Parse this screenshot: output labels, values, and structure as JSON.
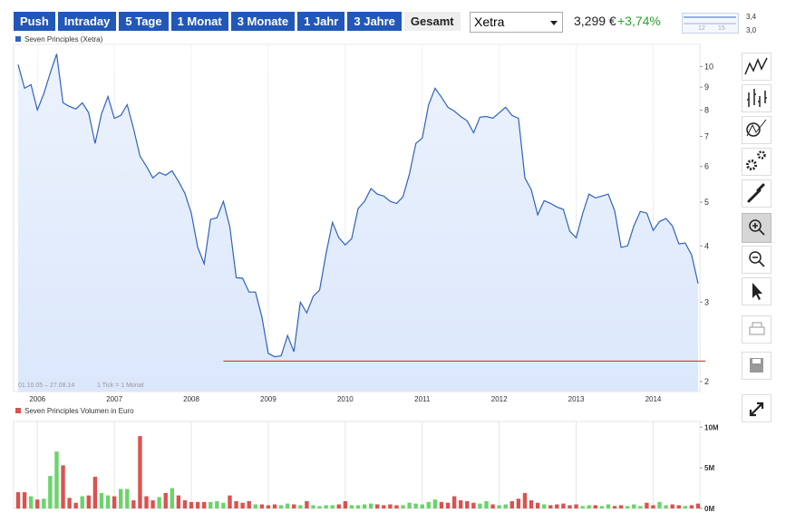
{
  "toolbar": {
    "tabs": [
      {
        "label": "Push",
        "selected": false
      },
      {
        "label": "Intraday",
        "selected": false
      },
      {
        "label": "5 Tage",
        "selected": false
      },
      {
        "label": "1 Monat",
        "selected": false
      },
      {
        "label": "3 Monate",
        "selected": false
      },
      {
        "label": "1 Jahr",
        "selected": false
      },
      {
        "label": "3 Jahre",
        "selected": false
      },
      {
        "label": "Gesamt",
        "selected": true
      }
    ]
  },
  "exchange": "Xetra",
  "price": "3,299 €",
  "change": "+3,74%",
  "mini_chart": {
    "y_labels": [
      "3,4",
      "3,0"
    ],
    "x_labels": [
      "12",
      "15"
    ]
  },
  "chart_data": [
    {
      "type": "line",
      "fill": true,
      "log_scale": true,
      "grid": "x",
      "date_range": "01.10.05 – 27.08.14",
      "tick_note": "1 Tick = 1 Monat",
      "categories": [
        null,
        null,
        null,
        "2006",
        null,
        null,
        null,
        null,
        null,
        null,
        null,
        null,
        null,
        null,
        null,
        "2007",
        null,
        null,
        null,
        null,
        null,
        null,
        null,
        null,
        null,
        null,
        null,
        "2008",
        null,
        null,
        null,
        null,
        null,
        null,
        null,
        null,
        null,
        null,
        null,
        "2009",
        null,
        null,
        null,
        null,
        null,
        null,
        null,
        null,
        null,
        null,
        null,
        "2010",
        null,
        null,
        null,
        null,
        null,
        null,
        null,
        null,
        null,
        null,
        null,
        "2011",
        null,
        null,
        null,
        null,
        null,
        null,
        null,
        null,
        null,
        null,
        null,
        "2012",
        null,
        null,
        null,
        null,
        null,
        null,
        null,
        null,
        null,
        null,
        null,
        "2013",
        null,
        null,
        null,
        null,
        null,
        null,
        null,
        null,
        null,
        null,
        null,
        "2014",
        null,
        null,
        null,
        null,
        null,
        null,
        null
      ],
      "series": [
        {
          "name": "Seven Principles (Xetra)",
          "color": "#2f62c0",
          "fill_color": "#dbe7fb",
          "values": [
            10.1,
            8.95,
            9.12,
            8.01,
            8.7,
            9.68,
            10.67,
            8.31,
            8.16,
            8.05,
            8.31,
            7.9,
            6.75,
            7.86,
            8.58,
            7.68,
            7.79,
            8.23,
            7.27,
            6.33,
            6.01,
            5.66,
            5.82,
            5.74,
            5.87,
            5.56,
            5.23,
            4.73,
            3.97,
            3.65,
            4.58,
            4.62,
            5.02,
            4.41,
            3.4,
            3.39,
            3.16,
            3.16,
            2.78,
            2.31,
            2.27,
            2.28,
            2.53,
            2.33,
            3.0,
            2.84,
            3.09,
            3.19,
            3.84,
            4.51,
            4.17,
            4.02,
            4.15,
            4.84,
            5.02,
            5.36,
            5.21,
            5.16,
            5.02,
            4.97,
            5.14,
            5.77,
            6.75,
            6.94,
            8.23,
            8.95,
            8.55,
            8.12,
            7.97,
            7.75,
            7.58,
            7.13,
            7.72,
            7.75,
            7.68,
            7.9,
            8.12,
            7.79,
            7.68,
            5.66,
            5.33,
            4.69,
            5.04,
            4.97,
            4.88,
            4.82,
            4.31,
            4.17,
            4.71,
            5.21,
            5.11,
            5.16,
            5.21,
            4.79,
            3.97,
            4.0,
            4.43,
            4.77,
            4.73,
            4.33,
            4.53,
            4.6,
            4.43,
            4.04,
            4.06,
            3.82,
            3.3
          ]
        }
      ],
      "ylim": [
        1.9,
        11.2
      ],
      "yticks": [
        2,
        3,
        4,
        5,
        6,
        7,
        8,
        9,
        10
      ],
      "reference_line": {
        "value": 2.22,
        "from": 32,
        "color": "#d42020"
      }
    },
    {
      "type": "bar",
      "grid": "x",
      "series": [
        {
          "name": "Seven Principles Volumen in Euro",
          "color": "#d9534f",
          "up_color": "#6ad46a",
          "values": [
            2.0,
            2.0,
            1.5,
            1.1,
            1.2,
            4.0,
            7.0,
            5.3,
            1.3,
            0.7,
            1.5,
            1.6,
            3.9,
            1.9,
            1.6,
            1.5,
            2.4,
            2.4,
            1.0,
            8.9,
            1.5,
            1.0,
            1.4,
            1.9,
            2.5,
            1.6,
            1.0,
            0.8,
            0.8,
            0.8,
            0.8,
            0.9,
            0.7,
            1.6,
            0.9,
            0.7,
            0.9,
            0.5,
            0.5,
            0.4,
            0.5,
            0.4,
            0.6,
            0.5,
            0.4,
            0.9,
            0.4,
            0.3,
            0.4,
            0.4,
            0.5,
            0.9,
            0.4,
            0.4,
            0.5,
            0.6,
            0.5,
            0.4,
            0.5,
            0.4,
            0.4,
            0.7,
            0.6,
            0.5,
            0.8,
            1.1,
            0.8,
            0.7,
            1.5,
            1.0,
            0.9,
            0.7,
            0.6,
            0.9,
            0.5,
            0.4,
            0.5,
            0.9,
            1.2,
            1.9,
            1.0,
            0.7,
            0.5,
            0.4,
            0.5,
            0.6,
            0.4,
            0.5,
            0.3,
            0.4,
            0.4,
            0.3,
            0.5,
            0.3,
            0.4,
            0.3,
            0.5,
            0.3,
            0.7,
            0.4,
            0.8,
            0.4,
            0.5,
            0.4,
            0.3,
            0.4,
            0.6
          ]
        }
      ],
      "ylim": [
        0,
        10.7
      ],
      "yticks": [
        {
          "value": 0,
          "label": "0M"
        },
        {
          "value": 5,
          "label": "5M"
        },
        {
          "value": 10,
          "label": "10M"
        }
      ]
    }
  ]
}
